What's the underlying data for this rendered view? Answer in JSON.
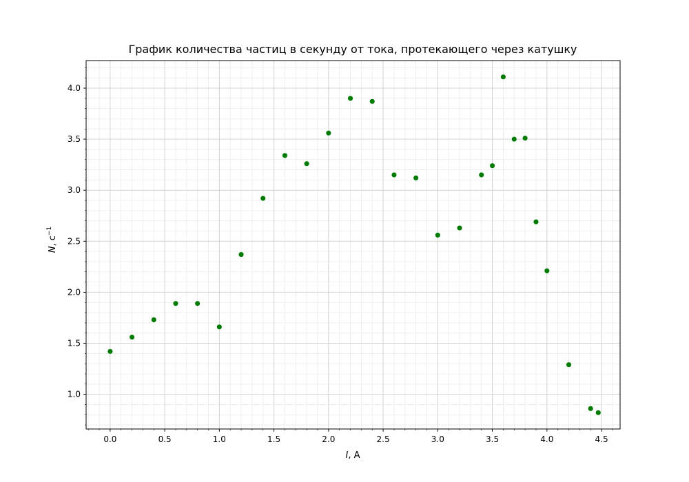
{
  "chart_data": {
    "type": "scatter",
    "title": "График количества частиц в секунду от тока, протекающего через катушку",
    "xlabel_var": "I",
    "xlabel_unit": ", А",
    "ylabel_var": "N",
    "ylabel_unit": ", с",
    "ylabel_exp": "−1",
    "xlim": [
      -0.22,
      4.67
    ],
    "ylim": [
      0.66,
      4.27
    ],
    "xticks": [
      0.0,
      0.5,
      1.0,
      1.5,
      2.0,
      2.5,
      3.0,
      3.5,
      4.0,
      4.5
    ],
    "xtick_labels": [
      "0.0",
      "0.5",
      "1.0",
      "1.5",
      "2.0",
      "2.5",
      "3.0",
      "3.5",
      "4.0",
      "4.5"
    ],
    "yticks": [
      1.0,
      1.5,
      2.0,
      2.5,
      3.0,
      3.5,
      4.0
    ],
    "ytick_labels": [
      "1.0",
      "1.5",
      "2.0",
      "2.5",
      "3.0",
      "3.5",
      "4.0"
    ],
    "grid": true,
    "minor_grid": true,
    "marker_color": "#007a00",
    "x": [
      0.0,
      0.2,
      0.4,
      0.6,
      0.8,
      1.0,
      1.2,
      1.4,
      1.6,
      1.8,
      2.0,
      2.2,
      2.4,
      2.6,
      2.8,
      3.0,
      3.2,
      3.4,
      3.5,
      3.6,
      3.7,
      3.8,
      3.9,
      4.0,
      4.2,
      4.4,
      4.47
    ],
    "y": [
      1.42,
      1.56,
      1.73,
      1.89,
      1.89,
      1.66,
      2.37,
      2.92,
      3.34,
      3.26,
      3.56,
      3.9,
      3.87,
      3.15,
      3.12,
      2.56,
      2.63,
      3.15,
      3.24,
      4.11,
      3.5,
      3.51,
      2.69,
      2.21,
      1.29,
      0.86,
      0.82
    ]
  }
}
